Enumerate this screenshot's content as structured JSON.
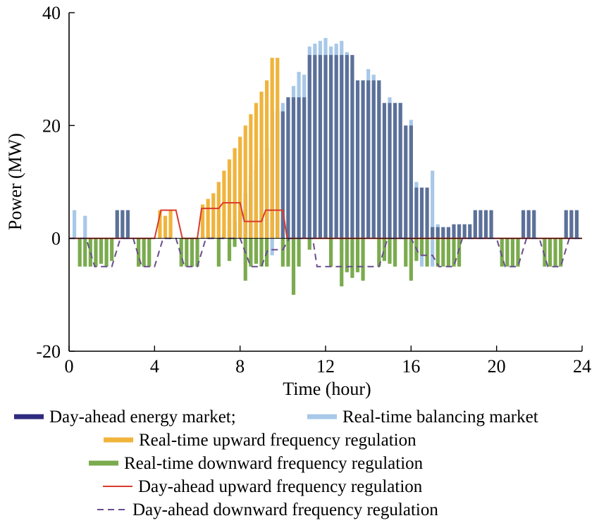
{
  "chart_data": {
    "type": "bar",
    "title": "",
    "xlabel": "Time (hour)",
    "ylabel": "Power (MW)",
    "xlim": [
      0,
      24
    ],
    "ylim": [
      -20,
      40
    ],
    "x_ticks": [
      "0",
      "4",
      "8",
      "12",
      "16",
      "20",
      "24"
    ],
    "y_ticks": [
      "-20",
      "0",
      "20",
      "40"
    ],
    "grid": false,
    "legend_position": "bottom",
    "series": [
      {
        "name": "Day-ahead energy market",
        "color": "#2e2a7e",
        "kind": "bar",
        "x": [
          2.25,
          2.5,
          2.75,
          6.25,
          6.5,
          6.75,
          7.0,
          7.25,
          7.5,
          7.75,
          8.0,
          8.25,
          8.5,
          8.75,
          9.0,
          9.25,
          9.5,
          9.75,
          10.0,
          10.25,
          10.5,
          10.75,
          11.0,
          11.25,
          11.5,
          11.75,
          12.0,
          12.25,
          12.5,
          12.75,
          13.0,
          13.25,
          13.5,
          13.75,
          14.0,
          14.25,
          14.5,
          14.75,
          15.0,
          15.25,
          15.5,
          15.75,
          16.0,
          16.25,
          16.5,
          16.75,
          17.0,
          17.25,
          17.5,
          17.75,
          18.0,
          18.25,
          18.5,
          18.75,
          19.0,
          19.25,
          19.5,
          19.75,
          21.25,
          21.5,
          21.75,
          23.25,
          23.5,
          23.75
        ],
        "values": [
          5,
          5,
          5,
          0.5,
          0.5,
          0.5,
          0.5,
          0.8,
          1.5,
          3,
          5,
          8,
          10,
          12,
          14,
          16,
          22.5,
          22.5,
          22.5,
          25,
          25,
          25,
          25,
          32.5,
          32.5,
          32.5,
          32.5,
          32.5,
          32.5,
          32.5,
          32.5,
          32.5,
          28,
          28,
          28,
          28,
          28,
          24,
          24,
          24,
          24,
          20,
          20,
          9,
          9,
          9,
          2,
          2,
          2,
          2,
          2.5,
          2.5,
          2.5,
          2.5,
          5,
          5,
          5,
          5,
          5,
          5,
          5,
          5,
          5,
          5
        ]
      },
      {
        "name": "Real-time balancing market",
        "color": "#a8c8e8",
        "kind": "bar",
        "x": [
          0.25,
          0.75,
          4.25,
          7.25,
          7.5,
          7.75,
          8.0,
          8.25,
          8.5,
          8.75,
          9.0,
          9.25,
          9.5,
          9.75,
          10.0,
          10.25,
          10.5,
          10.75,
          11.0,
          11.25,
          11.5,
          11.75,
          12.0,
          12.25,
          12.5,
          12.75,
          13.0,
          13.25,
          14.0,
          14.25,
          14.5,
          15.0,
          15.25,
          15.5,
          16.0,
          16.25,
          17.0,
          17.25,
          9.5,
          12.25,
          12.75,
          13.25,
          16.25,
          16.5,
          17.0
        ],
        "values": [
          5,
          4,
          0.5,
          2,
          3.5,
          5,
          6,
          8,
          11,
          13,
          15,
          17,
          23,
          23,
          24,
          25,
          27,
          29.5,
          29,
          34,
          34.5,
          35,
          35.5,
          34,
          34.5,
          35,
          33,
          30,
          30,
          29,
          27,
          25,
          23,
          24,
          21,
          10,
          12,
          2.5,
          -3,
          -2,
          -2.5,
          -3,
          -3,
          -5,
          -5
        ]
      },
      {
        "name": "Real-time upward frequency regulation",
        "color": "#f0b43c",
        "kind": "bar",
        "x": [
          4.25,
          4.5,
          4.75,
          6.25,
          6.5,
          6.75,
          7.0,
          7.25,
          7.5,
          7.75,
          8.0,
          8.25,
          8.5,
          8.75,
          9.0,
          9.25,
          9.5,
          9.75
        ],
        "values": [
          5,
          4,
          5,
          6,
          7,
          8,
          10,
          12,
          14,
          16,
          18,
          20,
          22,
          24,
          26,
          28,
          32,
          32
        ]
      },
      {
        "name": "Real-time downward frequency regulation",
        "color": "#7aab4e",
        "kind": "bar",
        "x": [
          0.5,
          0.75,
          1.0,
          1.25,
          1.5,
          1.75,
          2.0,
          3.25,
          3.5,
          3.75,
          5.25,
          5.5,
          5.75,
          6.0,
          7.0,
          7.5,
          7.75,
          8.25,
          8.5,
          8.75,
          9.0,
          9.25,
          10.0,
          10.25,
          10.5,
          10.75,
          11.25,
          12.25,
          12.75,
          13.0,
          13.25,
          13.5,
          13.75,
          14.5,
          14.75,
          15.0,
          15.25,
          15.75,
          16.0,
          16.25,
          16.5,
          16.75,
          17.25,
          17.5,
          17.75,
          18.0,
          18.25,
          20.25,
          20.5,
          20.75,
          21.0,
          22.25,
          22.5,
          22.75,
          23.0
        ],
        "values": [
          -5,
          -5,
          -5,
          -5,
          -4.5,
          -5,
          -4,
          -5,
          -5,
          -5,
          -5,
          -5,
          -5,
          -5,
          -5,
          -4,
          -1.5,
          -7.5,
          -5,
          -4.5,
          -5,
          -5,
          -5,
          -5,
          -10,
          -5,
          -2,
          -5,
          -8.5,
          -6,
          -7,
          -6,
          -7.5,
          -5,
          -4,
          -4.5,
          -5,
          -5,
          -7.5,
          -4,
          -3,
          -5,
          -5,
          -5,
          -5,
          -5,
          -5,
          -5,
          -5,
          -5,
          -5,
          -5,
          -5,
          -5,
          -5
        ]
      }
    ],
    "lines": [
      {
        "name": "Day-ahead upward frequency regulation",
        "color": "#d93a2b",
        "dash": "solid",
        "x": [
          0,
          4,
          4.3,
          5,
          5.3,
          6,
          6.2,
          7,
          7.2,
          8,
          8.2,
          9,
          9.2,
          10,
          10.2,
          24
        ],
        "values": [
          0,
          0,
          5,
          5,
          0,
          0,
          5.3,
          5.3,
          6.3,
          6.3,
          3,
          3,
          5,
          5,
          0,
          0
        ]
      },
      {
        "name": "Day-ahead downward frequency regulation",
        "color": "#6a4c8f",
        "dash": "dashed",
        "x": [
          0,
          0.8,
          1.2,
          2.0,
          2.4,
          3.0,
          3.4,
          4.0,
          4.4,
          5.0,
          5.4,
          6.0,
          6.4,
          8.0,
          8.5,
          9.0,
          9.3,
          10.0,
          10.3,
          11.4,
          11.6,
          12.0,
          12.5,
          14.5,
          14.9,
          16.0,
          16.4,
          17.0,
          17.3,
          18.0,
          18.4,
          20.0,
          20.4,
          21.0,
          21.4,
          22.0,
          22.4,
          23.0,
          23.4,
          24.0
        ],
        "values": [
          0,
          0,
          -5,
          -5,
          0,
          0,
          -5,
          -5,
          0,
          0,
          -5,
          -5,
          0,
          0,
          -5,
          -5,
          -2,
          -2,
          0,
          0,
          -5,
          -5,
          -5,
          -5,
          0,
          0,
          -3,
          -3,
          -5,
          -5,
          0,
          0,
          -5,
          -5,
          0,
          0,
          -5,
          -5,
          0,
          0
        ]
      }
    ],
    "legend": [
      {
        "label": "Day-ahead energy market;",
        "color": "#2e2a7e",
        "style": "thick"
      },
      {
        "label": "Real-time balancing market",
        "color": "#a8c8e8",
        "style": "thick"
      },
      {
        "label": "Real-time upward frequency regulation",
        "color": "#f0b43c",
        "style": "thick"
      },
      {
        "label": "Real-time downward frequency regulation",
        "color": "#7aab4e",
        "style": "thick"
      },
      {
        "label": "Day-ahead upward frequency regulation",
        "color": "#d93a2b",
        "style": "line"
      },
      {
        "label": "Day-ahead downward frequency regulation",
        "color": "#6a4c8f",
        "style": "dashed"
      }
    ]
  }
}
